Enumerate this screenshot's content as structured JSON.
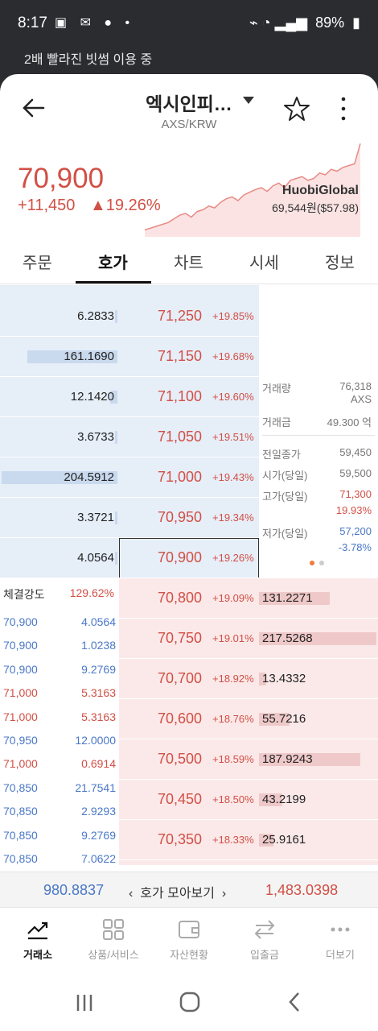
{
  "status": {
    "time": "8:17",
    "battery": "89%"
  },
  "notice": "2배 빨라진 빗썸 이용 중",
  "header": {
    "title": "엑시인피…",
    "subtitle": "AXS/KRW"
  },
  "ticker": {
    "price": "70,900",
    "change": "+11,450",
    "change_pct": "▲19.26%",
    "exchange_name": "HuobiGlobal",
    "exchange_price": "69,544원($57.98)",
    "spark": [
      0.04,
      0.06,
      0.08,
      0.1,
      0.12,
      0.16,
      0.2,
      0.22,
      0.18,
      0.24,
      0.26,
      0.3,
      0.28,
      0.34,
      0.38,
      0.4,
      0.36,
      0.42,
      0.45,
      0.48,
      0.5,
      0.46,
      0.52,
      0.55,
      0.5,
      0.58,
      0.6,
      0.62,
      0.58,
      0.6,
      0.66,
      0.64,
      0.7,
      0.68,
      0.72,
      0.74,
      0.76,
      0.98
    ]
  },
  "tabs": [
    {
      "label": "주문"
    },
    {
      "label": "호가"
    },
    {
      "label": "차트"
    },
    {
      "label": "시세"
    },
    {
      "label": "정보"
    }
  ],
  "asks": [
    {
      "qty": "6.2833",
      "price": "71,250",
      "pct": "+19.85%",
      "bar": 0.02
    },
    {
      "qty": "161.1690",
      "price": "71,150",
      "pct": "+19.68%",
      "bar": 0.78
    },
    {
      "qty": "12.1420",
      "price": "71,100",
      "pct": "+19.60%",
      "bar": 0.06
    },
    {
      "qty": "3.6733",
      "price": "71,050",
      "pct": "+19.51%",
      "bar": 0.02
    },
    {
      "qty": "204.5912",
      "price": "71,000",
      "pct": "+19.43%",
      "bar": 1.0
    },
    {
      "qty": "3.3721",
      "price": "70,950",
      "pct": "+19.34%",
      "bar": 0.02
    },
    {
      "qty": "4.0564",
      "price": "70,900",
      "pct": "+19.26%",
      "bar": 0.02
    }
  ],
  "info": [
    {
      "label": "거래량",
      "value": "76,318",
      "unit": "AXS",
      "color": "grey"
    },
    {
      "label": "거래금",
      "value": "49.300 억",
      "color": "grey"
    },
    {
      "label": "전일종가",
      "value": "59,450",
      "color": "grey"
    },
    {
      "label": "시가(당일)",
      "value": "59,500",
      "color": "grey"
    },
    {
      "label": "고가(당일)",
      "value": "71,300",
      "sub": "19.93%",
      "color": "red"
    },
    {
      "label": "저가(당일)",
      "value": "57,200",
      "sub": "-3.78%",
      "color": "blue"
    }
  ],
  "bids": [
    {
      "price": "70,800",
      "pct": "+19.09%",
      "qty": "131.2271",
      "bar": 0.6
    },
    {
      "price": "70,750",
      "pct": "+19.01%",
      "qty": "217.5268",
      "bar": 1.0
    },
    {
      "price": "70,700",
      "pct": "+18.92%",
      "qty": "13.4332",
      "bar": 0.06
    },
    {
      "price": "70,600",
      "pct": "+18.76%",
      "qty": "55.7216",
      "bar": 0.26
    },
    {
      "price": "70,500",
      "pct": "+18.59%",
      "qty": "187.9243",
      "bar": 0.86
    },
    {
      "price": "70,450",
      "pct": "+18.50%",
      "qty": "43.2199",
      "bar": 0.2
    },
    {
      "price": "70,350",
      "pct": "+18.33%",
      "qty": "25.9161",
      "bar": 0.12
    }
  ],
  "trades_header": {
    "label": "체결강도",
    "value": "129.62%"
  },
  "trades": [
    {
      "price": "70,900",
      "qty": "4.0564",
      "color": "blue"
    },
    {
      "price": "70,900",
      "qty": "1.0238",
      "color": "blue"
    },
    {
      "price": "70,900",
      "qty": "9.2769",
      "color": "blue"
    },
    {
      "price": "71,000",
      "qty": "5.3163",
      "color": "red"
    },
    {
      "price": "71,000",
      "qty": "5.3163",
      "color": "red"
    },
    {
      "price": "70,950",
      "qty": "12.0000",
      "color": "blue"
    },
    {
      "price": "71,000",
      "qty": "0.6914",
      "color": "red"
    },
    {
      "price": "70,850",
      "qty": "21.7541",
      "color": "blue"
    },
    {
      "price": "70,850",
      "qty": "2.9293",
      "color": "blue"
    },
    {
      "price": "70,850",
      "qty": "9.2769",
      "color": "blue"
    },
    {
      "price": "70,850",
      "qty": "7.0622",
      "color": "blue"
    }
  ],
  "summary": {
    "left": "980.8837",
    "mid": "호가 모아보기",
    "right": "1,483.0398"
  },
  "nav": [
    {
      "label": "거래소",
      "icon": "chart-line-icon"
    },
    {
      "label": "상품/서비스",
      "icon": "grid-icon"
    },
    {
      "label": "자산현황",
      "icon": "wallet-icon"
    },
    {
      "label": "입출금",
      "icon": "transfer-icon"
    },
    {
      "label": "더보기",
      "icon": "more-dots-icon"
    }
  ]
}
